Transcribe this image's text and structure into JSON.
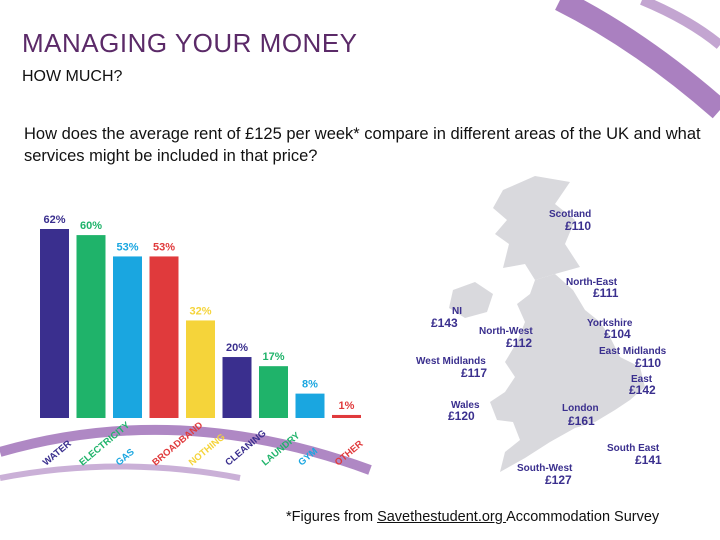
{
  "slide": {
    "title": "MANAGING YOUR MONEY",
    "subtitle": "HOW MUCH?",
    "question": "How does the average rent of £125 per week* compare in different areas of the UK and what services might be included in that price?"
  },
  "footnote": {
    "prefix": "*Figures from ",
    "link": "Savethestudent.org ",
    "suffix": "Accommodation Survey"
  },
  "chart_data": {
    "type": "bar",
    "categories": [
      "WATER",
      "ELECTRICITY",
      "GAS",
      "BROADBAND",
      "NOTHING",
      "CLEANING",
      "LAUNDRY",
      "GYM",
      "OTHER"
    ],
    "values": [
      62,
      60,
      53,
      53,
      32,
      20,
      17,
      8,
      1
    ],
    "data_labels": [
      "62%",
      "60%",
      "53%",
      "53%",
      "32%",
      "20%",
      "17%",
      "8%",
      "1%"
    ],
    "colors": [
      "#3a2f8e",
      "#1fb36a",
      "#1aa6e0",
      "#e03a3c",
      "#f5d43a",
      "#3a2f8e",
      "#1fb36a",
      "#1aa6e0",
      "#e03a3c"
    ],
    "ylim": [
      0,
      62
    ],
    "grid": false
  },
  "map": {
    "land_color": "#d9d9dd",
    "regions": [
      {
        "name": "Scotland",
        "price": "£110"
      },
      {
        "name": "North-East",
        "price": "£111"
      },
      {
        "name": "NI",
        "price": "£143"
      },
      {
        "name": "North-West",
        "price": "£112"
      },
      {
        "name": "Yorkshire",
        "price": "£104"
      },
      {
        "name": "East Midlands",
        "price": "£110"
      },
      {
        "name": "West Midlands",
        "price": "£117"
      },
      {
        "name": "East",
        "price": "£142"
      },
      {
        "name": "Wales",
        "price": "£120"
      },
      {
        "name": "London",
        "price": "£161"
      },
      {
        "name": "South East",
        "price": "£141"
      },
      {
        "name": "South-West",
        "price": "£127"
      }
    ]
  },
  "colors": {
    "accent_purple": "#9b6ab5",
    "title_purple": "#5b2a68"
  }
}
